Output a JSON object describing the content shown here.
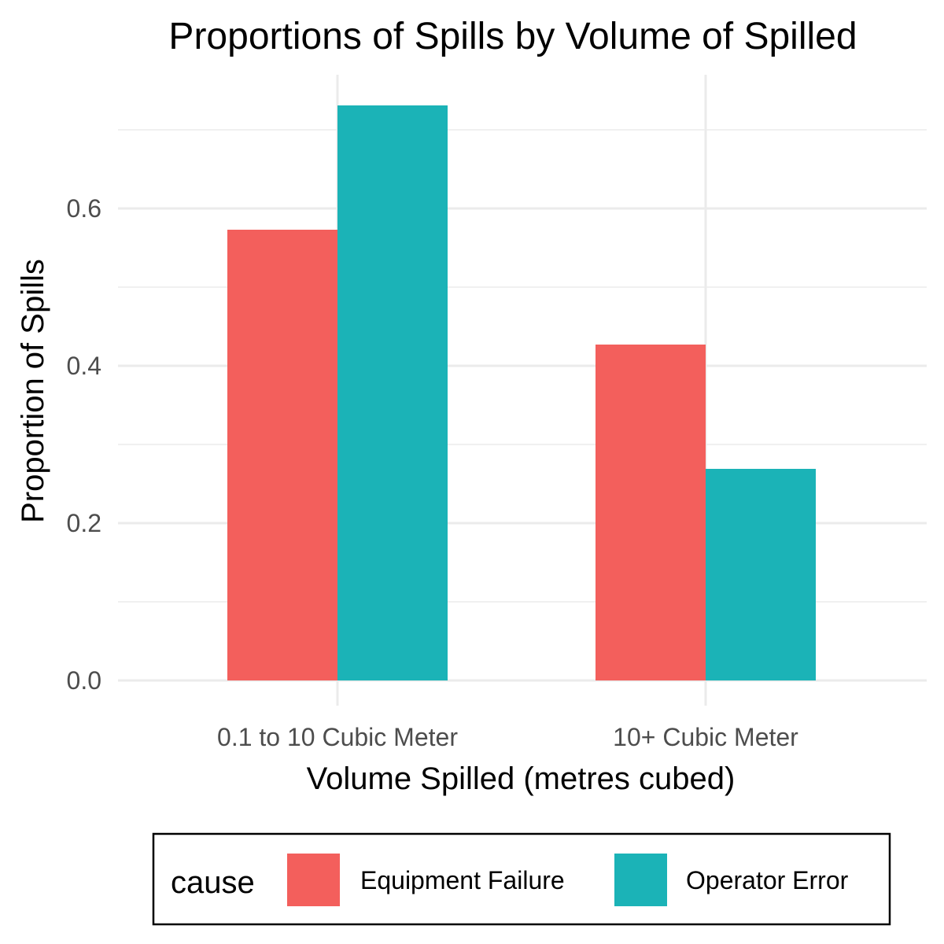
{
  "chart_data": {
    "type": "bar",
    "title": "Proportions of Spills by Volume of Spilled",
    "xlabel": "Volume Spilled (metres cubed)",
    "ylabel": "Proportion of Spills",
    "categories": [
      "0.1 to 10 Cubic Meter",
      "10+ Cubic Meter"
    ],
    "series": [
      {
        "name": "Equipment Failure",
        "values": [
          0.573,
          0.427
        ],
        "color": "#F35F5C"
      },
      {
        "name": "Operator Error",
        "values": [
          0.731,
          0.269
        ],
        "color": "#1BB3B7"
      }
    ],
    "ylim": [
      0,
      0.731
    ],
    "yticks": [
      0.0,
      0.2,
      0.4,
      0.6
    ],
    "ytick_labels": [
      "0.0",
      "0.2",
      "0.4",
      "0.6"
    ],
    "grid": true,
    "legend": {
      "title": "cause",
      "position": "bottom"
    }
  }
}
